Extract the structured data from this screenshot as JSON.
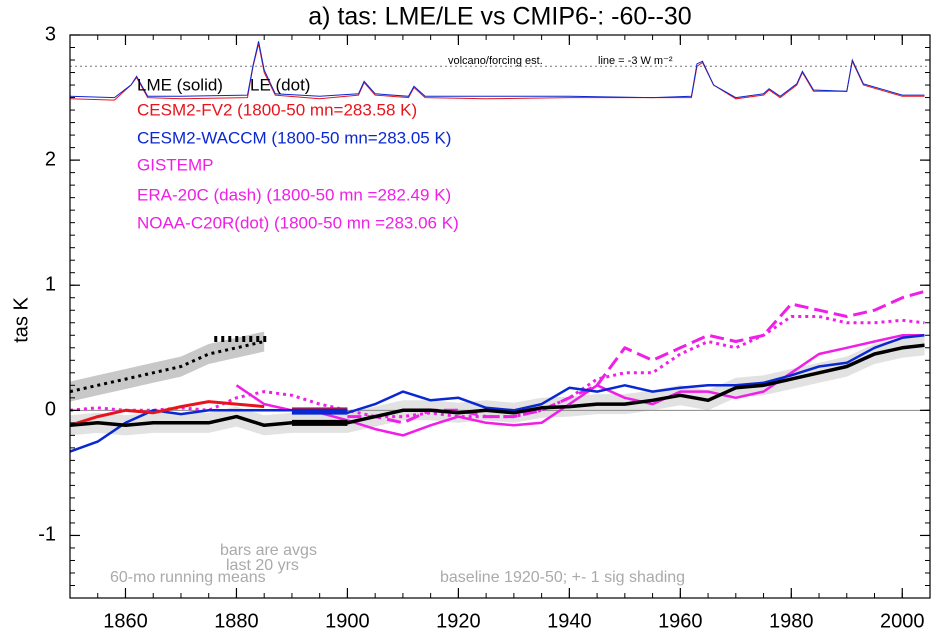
{
  "chart_data": {
    "type": "line",
    "title": "a) tas: LME/LE vs CMIP6-: -60--30",
    "y_label": "tas K",
    "xlim": [
      1850,
      2005
    ],
    "ylim": [
      -1.5,
      3
    ],
    "xticks": [
      1860,
      1880,
      1900,
      1920,
      1940,
      1960,
      1980,
      2000
    ],
    "yticks": [
      -1,
      0,
      1,
      2,
      3
    ],
    "zero_line": 0,
    "x": [
      1850,
      1855,
      1860,
      1865,
      1870,
      1875,
      1880,
      1885,
      1890,
      1895,
      1900,
      1905,
      1910,
      1915,
      1920,
      1925,
      1930,
      1935,
      1940,
      1945,
      1950,
      1955,
      1960,
      1965,
      1970,
      1975,
      1980,
      1985,
      1990,
      1995,
      2000,
      2004
    ],
    "series": [
      {
        "name": "LME (solid)",
        "color": "#000000",
        "style": "solid",
        "width": 3.5,
        "values": [
          -0.12,
          -0.1,
          -0.12,
          -0.1,
          -0.1,
          -0.1,
          -0.05,
          -0.12,
          -0.1,
          -0.1,
          -0.1,
          -0.05,
          0,
          0,
          -0.02,
          0,
          -0.02,
          0.02,
          0.03,
          0.05,
          0.05,
          0.08,
          0.12,
          0.08,
          0.18,
          0.2,
          0.25,
          0.3,
          0.35,
          0.45,
          0.5,
          0.52
        ]
      },
      {
        "name": "LE (dot)",
        "color": "#000000",
        "style": "dot",
        "width": 3,
        "values": [
          0.15,
          0.2,
          0.25,
          0.3,
          0.35,
          0.45,
          0.5,
          0.55,
          null,
          null,
          null,
          null,
          null,
          null,
          null,
          null,
          null,
          null,
          null,
          null,
          null,
          null,
          null,
          null,
          null,
          null,
          null,
          null,
          null,
          null,
          null,
          null
        ]
      },
      {
        "name": "CESM2-FV2 (1800-50 mn=283.58 K)",
        "color": "#e8141c",
        "style": "solid",
        "width": 3,
        "values": [
          -0.12,
          -0.05,
          0,
          -0.02,
          0.03,
          0.07,
          0.05,
          0.03,
          null,
          null,
          null,
          null,
          null,
          null,
          null,
          null,
          null,
          null,
          null,
          null,
          null,
          null,
          null,
          null,
          null,
          null,
          null,
          null,
          null,
          null,
          null,
          null
        ]
      },
      {
        "name": "CESM2-WACCM (1800-50 mn=283.05 K)",
        "color": "#0a28d2",
        "style": "solid",
        "width": 2.5,
        "values": [
          -0.33,
          -0.25,
          -0.1,
          0,
          -0.03,
          0,
          0,
          0,
          0,
          -0.02,
          -0.02,
          0.05,
          0.15,
          0.08,
          0.1,
          0.02,
          0,
          0.05,
          0.18,
          0.15,
          0.2,
          0.15,
          0.18,
          0.2,
          0.2,
          0.22,
          0.28,
          0.35,
          0.38,
          0.5,
          0.58,
          0.6
        ]
      },
      {
        "name": "GISTEMP",
        "color": "#f01ee6",
        "style": "solid",
        "width": 2.5,
        "values": [
          null,
          null,
          null,
          null,
          null,
          null,
          0.2,
          0.05,
          0,
          -0.02,
          -0.08,
          -0.15,
          -0.2,
          -0.12,
          -0.05,
          -0.1,
          -0.12,
          -0.1,
          0.05,
          0.2,
          0.1,
          0.05,
          0.15,
          0.15,
          0.1,
          0.15,
          0.3,
          0.45,
          0.5,
          0.55,
          0.6,
          0.6
        ]
      },
      {
        "name": "ERA-20C (dash) (1800-50 mn =282.49 K)",
        "color": "#f01ee6",
        "style": "dash",
        "width": 3,
        "values": [
          null,
          null,
          null,
          null,
          null,
          null,
          null,
          null,
          null,
          null,
          -0.05,
          -0.05,
          -0.1,
          0,
          0,
          -0.05,
          -0.05,
          0,
          0.1,
          0.2,
          0.5,
          0.4,
          0.5,
          0.6,
          0.55,
          0.6,
          0.85,
          0.8,
          0.75,
          0.8,
          0.9,
          0.95
        ]
      },
      {
        "name": "NOAA-C20R(dot) (1800-50 mn =283.06 K)",
        "color": "#f01ee6",
        "style": "dot",
        "width": 3,
        "values": [
          0,
          0.02,
          0,
          0,
          0.02,
          0,
          0.1,
          0.15,
          0.12,
          0.05,
          0,
          -0.05,
          -0.05,
          -0.02,
          -0.05,
          -0.05,
          -0.05,
          0,
          0.1,
          0.25,
          0.3,
          0.3,
          0.45,
          0.55,
          0.5,
          0.6,
          0.75,
          0.75,
          0.7,
          0.7,
          0.72,
          0.7
        ]
      }
    ],
    "bands": [
      {
        "color": "#c8c8c8",
        "x": [
          1850,
          1855,
          1860,
          1865,
          1870,
          1875,
          1880,
          1885
        ],
        "lower": [
          0.07,
          0.12,
          0.17,
          0.22,
          0.27,
          0.37,
          0.42,
          0.47
        ],
        "upper": [
          0.23,
          0.28,
          0.33,
          0.38,
          0.43,
          0.53,
          0.58,
          0.63
        ]
      },
      {
        "color": "#e2e2e2",
        "x": [
          1850,
          1855,
          1860,
          1865,
          1870,
          1875,
          1880,
          1885,
          1890,
          1895,
          1900,
          1905,
          1910,
          1915,
          1920,
          1925,
          1930,
          1935,
          1940,
          1945,
          1950,
          1955,
          1960,
          1965,
          1970,
          1975,
          1980,
          1985,
          1990,
          1995,
          2000,
          2004
        ],
        "lower": [
          -0.2,
          -0.18,
          -0.2,
          -0.18,
          -0.18,
          -0.18,
          -0.13,
          -0.2,
          -0.18,
          -0.18,
          -0.18,
          -0.13,
          -0.08,
          -0.08,
          -0.1,
          -0.08,
          -0.1,
          -0.06,
          -0.05,
          -0.03,
          -0.03,
          0,
          0.04,
          0,
          0.1,
          0.12,
          0.17,
          0.22,
          0.27,
          0.37,
          0.42,
          0.44
        ],
        "upper": [
          -0.04,
          -0.02,
          -0.04,
          -0.02,
          -0.02,
          -0.02,
          0.03,
          -0.04,
          -0.02,
          -0.02,
          -0.02,
          0.03,
          0.08,
          0.08,
          0.06,
          0.08,
          0.06,
          0.1,
          0.11,
          0.13,
          0.13,
          0.16,
          0.2,
          0.16,
          0.26,
          0.28,
          0.33,
          0.38,
          0.43,
          0.53,
          0.58,
          0.6
        ]
      }
    ],
    "bars": [
      {
        "color": "#000000",
        "style": "dot",
        "x": [
          1876,
          1886
        ],
        "value": 0.57
      },
      {
        "color": "#e8141c",
        "style": "solid",
        "x": [
          1890,
          1900
        ],
        "value": 0.0
      },
      {
        "color": "#0a28d2",
        "style": "solid",
        "x": [
          1890,
          1900
        ],
        "value": -0.01
      },
      {
        "color": "#000000",
        "style": "solid",
        "x": [
          1890,
          1900
        ],
        "value": -0.1
      }
    ],
    "forcing": {
      "reference": 2.75,
      "x": [
        1850,
        1858,
        1861,
        1862,
        1864,
        1870,
        1882,
        1883,
        1884,
        1885,
        1887,
        1895,
        1902,
        1903,
        1905,
        1911,
        1912,
        1914,
        1925,
        1940,
        1955,
        1962,
        1963,
        1964,
        1966,
        1970,
        1975,
        1976,
        1978,
        1981,
        1982,
        1984,
        1990,
        1991,
        1993,
        2000,
        2004
      ],
      "lines": [
        {
          "color": "#e8141c",
          "values": [
            2.49,
            2.48,
            2.6,
            2.66,
            2.5,
            2.49,
            2.5,
            2.75,
            2.93,
            2.7,
            2.52,
            2.49,
            2.52,
            2.62,
            2.52,
            2.5,
            2.58,
            2.5,
            2.49,
            2.5,
            2.5,
            2.5,
            2.75,
            2.78,
            2.6,
            2.49,
            2.52,
            2.56,
            2.5,
            2.6,
            2.7,
            2.55,
            2.55,
            2.79,
            2.6,
            2.51,
            2.51
          ]
        },
        {
          "color": "#0a28d2",
          "values": [
            2.51,
            2.5,
            2.6,
            2.67,
            2.51,
            2.51,
            2.52,
            2.76,
            2.95,
            2.72,
            2.53,
            2.51,
            2.53,
            2.63,
            2.53,
            2.51,
            2.59,
            2.51,
            2.51,
            2.51,
            2.5,
            2.51,
            2.77,
            2.79,
            2.6,
            2.5,
            2.53,
            2.57,
            2.51,
            2.61,
            2.71,
            2.56,
            2.55,
            2.8,
            2.61,
            2.52,
            2.52
          ]
        }
      ]
    },
    "annotations": [
      "volcano/forcing est.",
      "line = -3 W m⁻²",
      "bars are avgs",
      "last 20 yrs",
      "60-mo running means",
      "baseline 1920-50; +- 1 sig shading"
    ]
  }
}
